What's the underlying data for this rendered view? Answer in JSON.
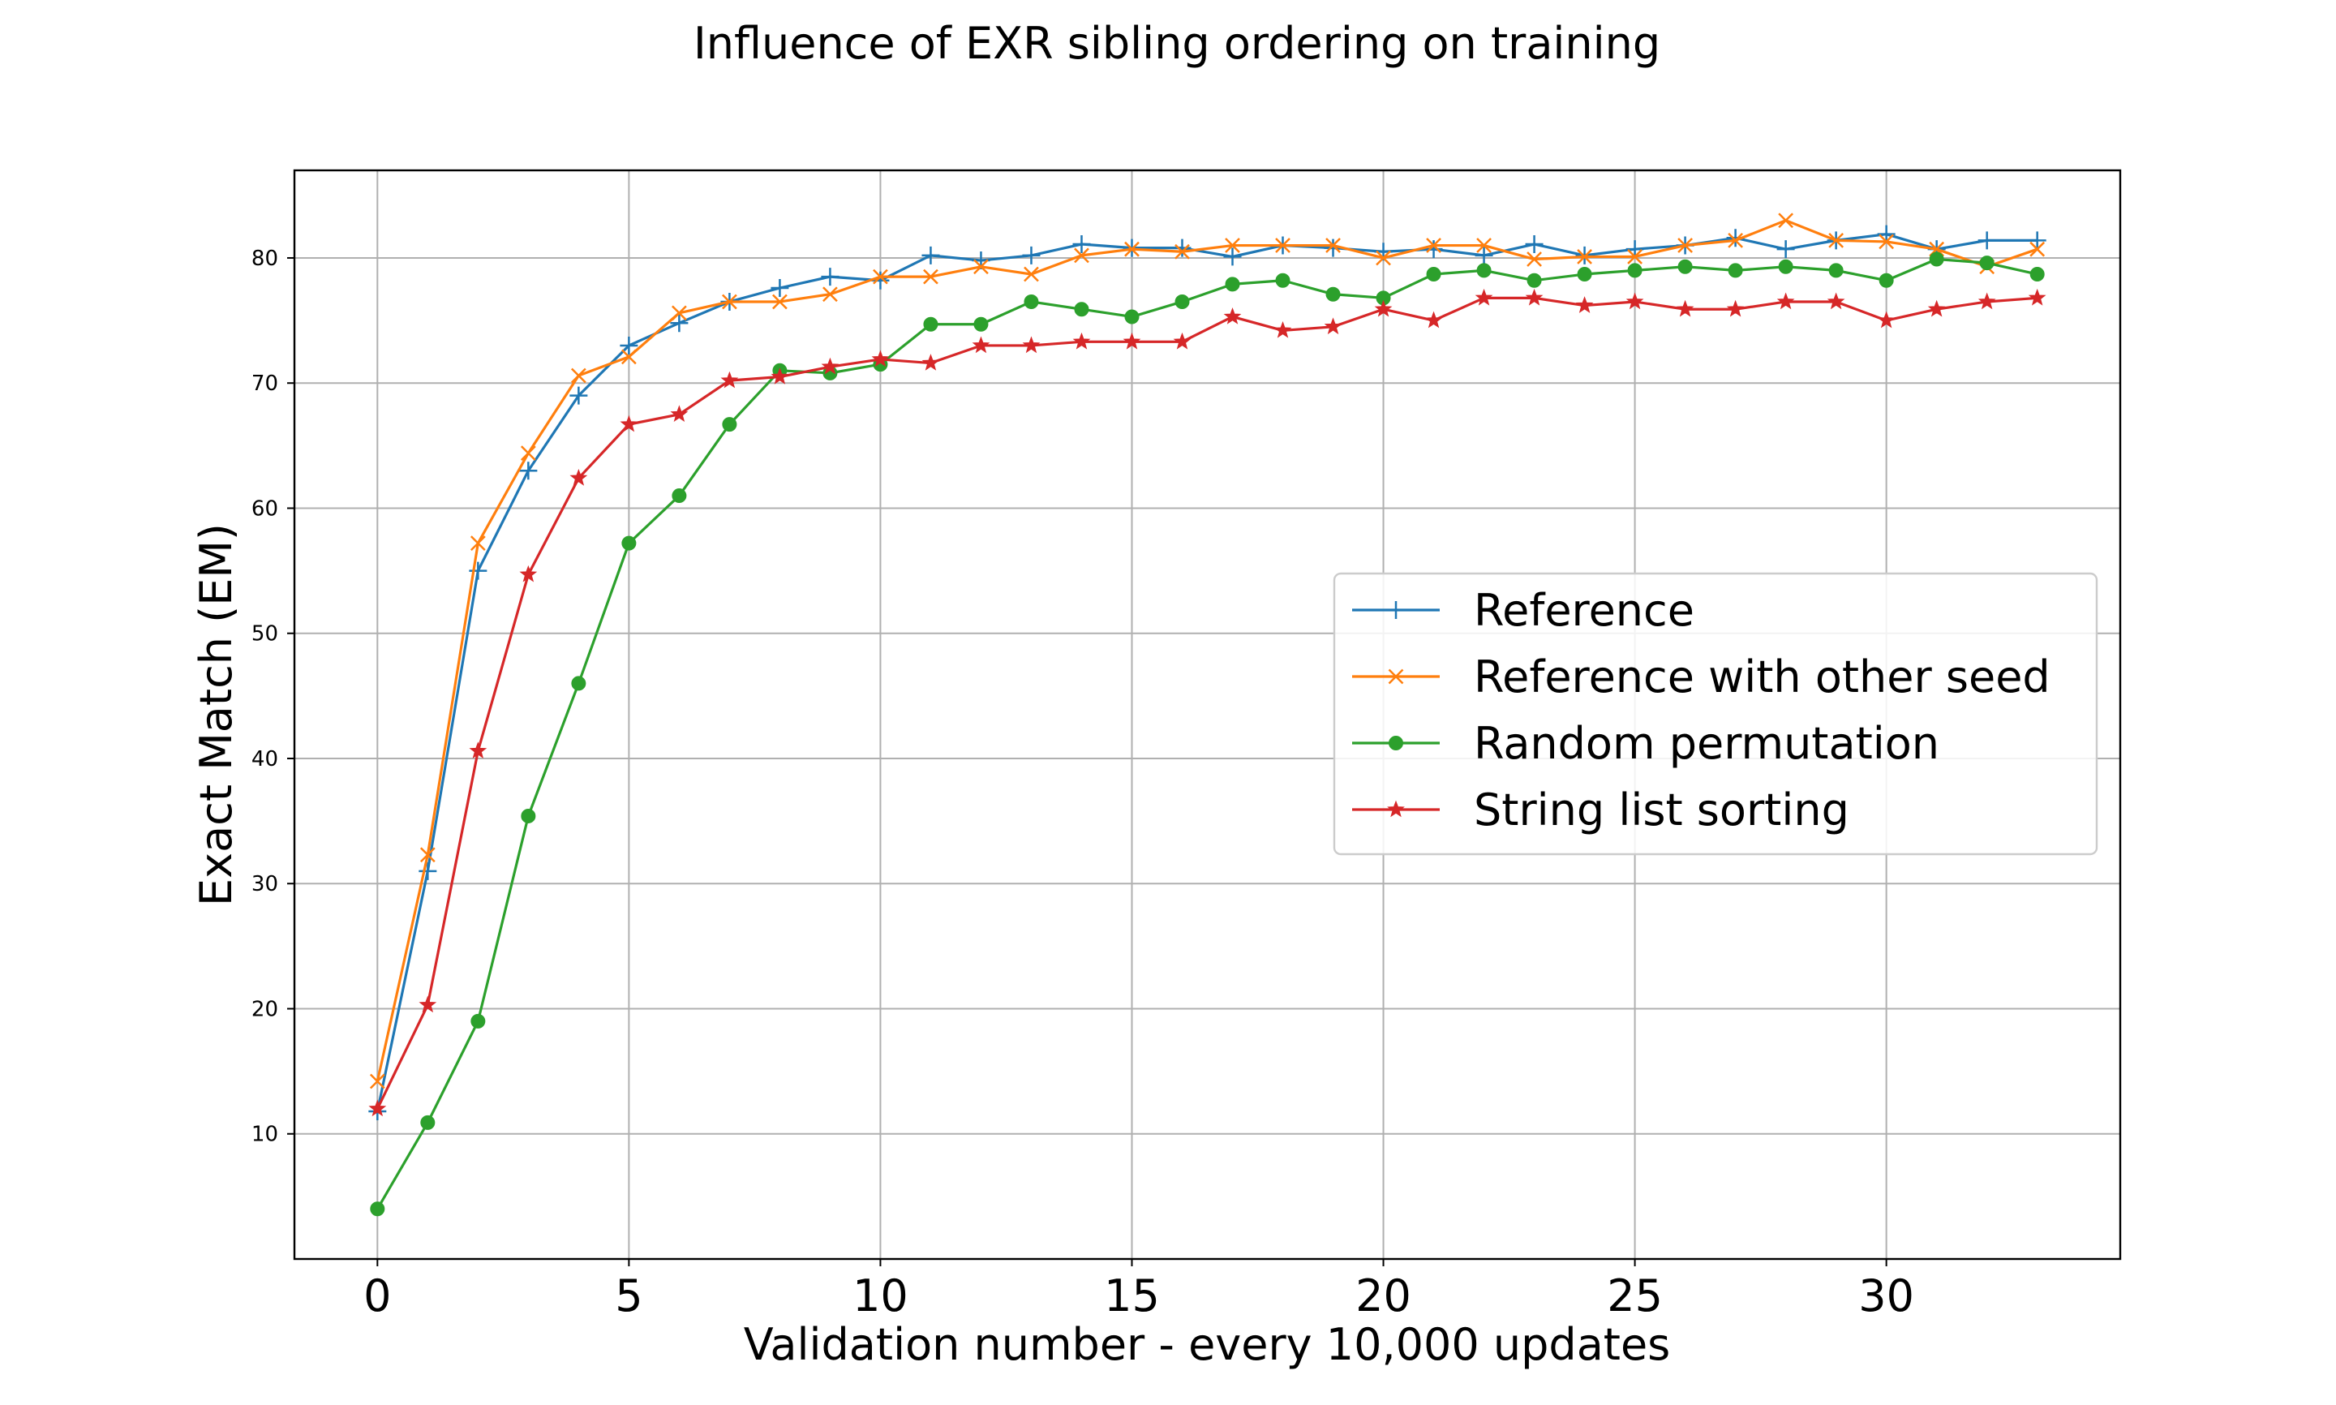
{
  "chart_data": {
    "type": "line",
    "title": "Influence of EXR sibling ordering on training",
    "xlabel": "Validation number - every 10,000 updates",
    "ylabel": "Exact Match (EM)",
    "xlim": [
      -1.65,
      34.65
    ],
    "ylim": [
      0,
      87
    ],
    "xticks": [
      0,
      5,
      10,
      15,
      20,
      25,
      30
    ],
    "yticks": [
      10,
      20,
      30,
      40,
      50,
      60,
      70,
      80
    ],
    "grid": true,
    "legend_position": "center-right",
    "x": [
      0,
      1,
      2,
      3,
      4,
      5,
      6,
      7,
      8,
      9,
      10,
      11,
      12,
      13,
      14,
      15,
      16,
      17,
      18,
      19,
      20,
      21,
      22,
      23,
      24,
      25,
      26,
      27,
      28,
      29,
      30,
      31,
      32,
      33
    ],
    "series": [
      {
        "name": "Reference",
        "color": "#1f77b4",
        "marker": "plus",
        "values": [
          11.8,
          31.0,
          55.0,
          63.0,
          69.0,
          73.0,
          74.8,
          76.5,
          77.6,
          78.5,
          78.2,
          80.2,
          79.8,
          80.2,
          81.1,
          80.8,
          80.8,
          80.1,
          81.0,
          80.8,
          80.5,
          80.7,
          80.2,
          81.1,
          80.2,
          80.7,
          81.0,
          81.6,
          80.7,
          81.4,
          81.9,
          80.7,
          81.4,
          81.4
        ]
      },
      {
        "name": "Reference with other seed",
        "color": "#ff7f0e",
        "marker": "x",
        "values": [
          14.2,
          32.3,
          57.2,
          64.4,
          70.6,
          72.1,
          75.6,
          76.5,
          76.5,
          77.1,
          78.5,
          78.5,
          79.3,
          78.7,
          80.2,
          80.7,
          80.5,
          81.0,
          81.0,
          81.0,
          80.0,
          81.0,
          81.0,
          79.9,
          80.1,
          80.1,
          81.0,
          81.4,
          83.0,
          81.4,
          81.3,
          80.7,
          79.3,
          80.7
        ]
      },
      {
        "name": "Random permutation",
        "color": "#2ca02c",
        "marker": "circle",
        "values": [
          4.0,
          10.9,
          19.0,
          35.4,
          46.0,
          57.2,
          61.0,
          66.7,
          71.0,
          70.8,
          71.5,
          74.7,
          74.7,
          76.5,
          75.9,
          75.3,
          76.5,
          77.9,
          78.2,
          77.1,
          76.8,
          78.7,
          79.0,
          78.2,
          78.7,
          79.0,
          79.3,
          79.0,
          79.3,
          79.0,
          78.2,
          79.9,
          79.6,
          78.7
        ]
      },
      {
        "name": "String list sorting",
        "color": "#d62728",
        "marker": "star",
        "values": [
          12.0,
          20.3,
          40.6,
          54.7,
          62.4,
          66.7,
          67.5,
          70.2,
          70.5,
          71.3,
          71.9,
          71.6,
          73.0,
          73.0,
          73.3,
          73.3,
          73.3,
          75.3,
          74.2,
          74.5,
          75.9,
          75.0,
          76.8,
          76.8,
          76.2,
          76.5,
          75.9,
          75.9,
          76.5,
          76.5,
          75.0,
          75.9,
          76.5,
          76.8
        ]
      }
    ]
  }
}
